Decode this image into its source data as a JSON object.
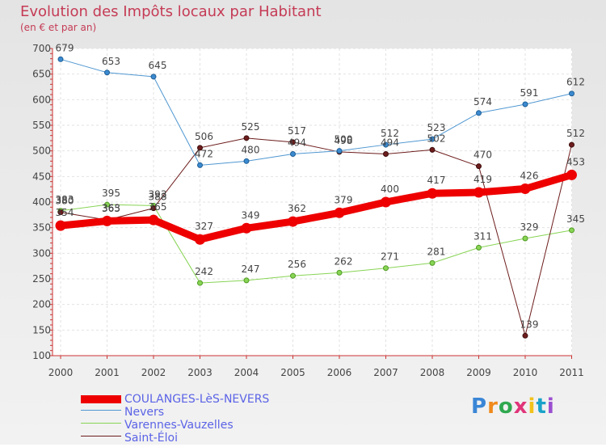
{
  "header": {
    "title": "Evolution des Impôts locaux par Habitant",
    "subtitle": "(en € et par an)"
  },
  "logo": {
    "text": "Proxiti"
  },
  "colors": {
    "title": "#c53b55",
    "legend_text": "#5b63e6"
  },
  "chart_data": {
    "type": "line",
    "title": "Evolution des Impôts locaux par Habitant",
    "subtitle": "(en € et par an)",
    "xlabel": "",
    "ylabel": "",
    "categories": [
      "2000",
      "2001",
      "2002",
      "2003",
      "2004",
      "2005",
      "2006",
      "2007",
      "2008",
      "2009",
      "2010",
      "2011"
    ],
    "ylim": [
      100,
      700
    ],
    "yticks": [
      100,
      150,
      200,
      250,
      300,
      350,
      400,
      450,
      500,
      550,
      600,
      650,
      700
    ],
    "grid": true,
    "legend_position": "bottom",
    "series": [
      {
        "name": "COULANGES-LèS-NEVERS",
        "color": "#ee0000",
        "values": [
          354,
          363,
          365,
          327,
          349,
          362,
          379,
          400,
          417,
          419,
          426,
          453
        ]
      },
      {
        "name": "Nevers",
        "color": "#4f97d1",
        "values": [
          679,
          653,
          645,
          472,
          480,
          494,
          500,
          512,
          523,
          574,
          591,
          612
        ]
      },
      {
        "name": "Varennes-Vauzelles",
        "color": "#88d455",
        "values": [
          383,
          395,
          393,
          242,
          247,
          256,
          262,
          271,
          281,
          311,
          329,
          345
        ]
      },
      {
        "name": "Saint-Éloi",
        "color": "#6d1c1c",
        "values": [
          380,
          365,
          388,
          506,
          525,
          517,
          498,
          494,
          502,
          470,
          139,
          512
        ]
      }
    ]
  }
}
